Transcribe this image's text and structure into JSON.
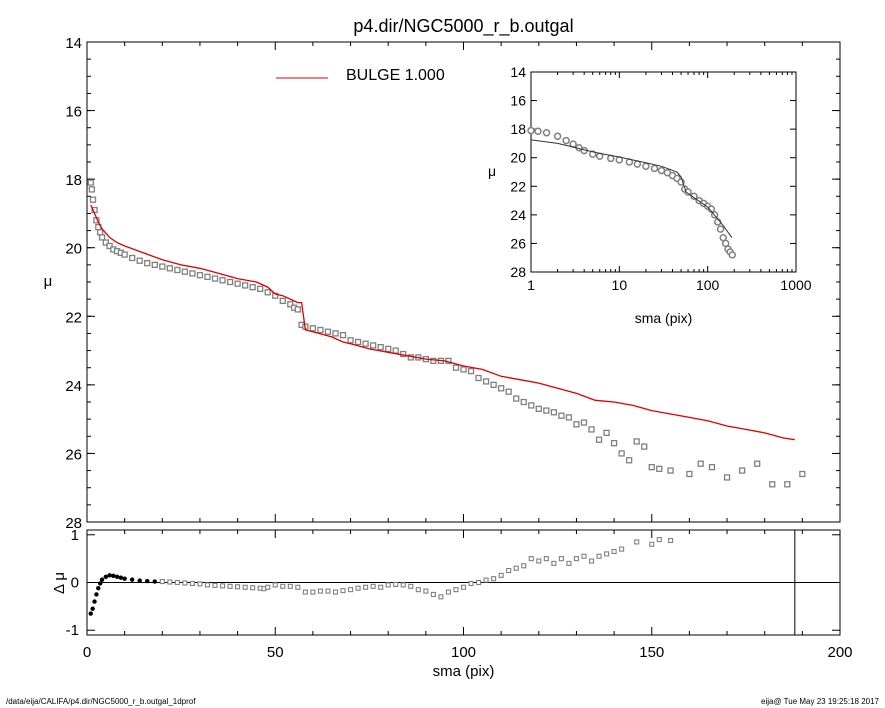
{
  "chart_data": [
    {
      "type": "scatter",
      "title": "p4.dir/NGC5000_r_b.outgal",
      "xlabel": "sma (pix)",
      "ylabel": "μ",
      "xlim": [
        0,
        200
      ],
      "ylim": [
        28,
        14
      ],
      "y_inverted": true,
      "x_ticks": [
        "0",
        "50",
        "100",
        "150",
        "200"
      ],
      "y_ticks": [
        "14",
        "16",
        "18",
        "20",
        "22",
        "24",
        "26",
        "28"
      ],
      "legend": {
        "label": "BULGE 1.000",
        "color": "#dd0000",
        "placement": "top"
      },
      "series": [
        {
          "name": "data",
          "kind": "points",
          "color": "#808080",
          "x": [
            1,
            1.3,
            1.6,
            2,
            2.5,
            3,
            3.5,
            4,
            5,
            6,
            7,
            8,
            9,
            10,
            12,
            14,
            16,
            18,
            20,
            22,
            24,
            26,
            28,
            30,
            32,
            34,
            36,
            38,
            40,
            42,
            44,
            46,
            48,
            50,
            52,
            54,
            55,
            56,
            57,
            58,
            60,
            62,
            64,
            66,
            68,
            70,
            72,
            74,
            76,
            78,
            80,
            82,
            84,
            86,
            88,
            90,
            92,
            94,
            96,
            98,
            100,
            102,
            104,
            106,
            108,
            110,
            112,
            114,
            116,
            118,
            120,
            122,
            124,
            126,
            128,
            130,
            132,
            134,
            136,
            138,
            140,
            142,
            144,
            146,
            148,
            150,
            152,
            155,
            160,
            163,
            166,
            170,
            174,
            178,
            182,
            186,
            190
          ],
          "values": [
            18.1,
            18.3,
            18.6,
            18.9,
            19.2,
            19.4,
            19.55,
            19.7,
            19.85,
            19.95,
            20.05,
            20.1,
            20.15,
            20.2,
            20.3,
            20.38,
            20.45,
            20.5,
            20.55,
            20.6,
            20.65,
            20.7,
            20.75,
            20.8,
            20.85,
            20.9,
            20.95,
            21.0,
            21.05,
            21.1,
            21.15,
            21.2,
            21.3,
            21.4,
            21.55,
            21.65,
            21.75,
            21.8,
            22.25,
            22.3,
            22.35,
            22.4,
            22.45,
            22.5,
            22.55,
            22.7,
            22.75,
            22.8,
            22.85,
            22.9,
            22.95,
            23.0,
            23.1,
            23.2,
            23.2,
            23.25,
            23.3,
            23.3,
            23.3,
            23.5,
            23.55,
            23.6,
            23.8,
            23.9,
            24.0,
            24.1,
            24.2,
            24.4,
            24.5,
            24.6,
            24.7,
            24.75,
            24.8,
            24.9,
            24.95,
            25.15,
            25.1,
            25.3,
            25.6,
            25.4,
            25.7,
            26.0,
            26.2,
            25.65,
            25.8,
            26.4,
            26.45,
            26.5,
            26.6,
            26.3,
            26.4,
            26.7,
            26.5,
            26.3,
            26.9,
            26.9,
            26.6
          ]
        },
        {
          "name": "BULGE 1.000",
          "kind": "line",
          "color": "#dd0000",
          "x": [
            1,
            2,
            3,
            4,
            6,
            8,
            10,
            15,
            20,
            25,
            30,
            35,
            40,
            45,
            48,
            50,
            52,
            54,
            56,
            57,
            58,
            60,
            65,
            68,
            70,
            75,
            80,
            85,
            90,
            95,
            100,
            105,
            110,
            115,
            120,
            125,
            130,
            135,
            140,
            145,
            150,
            155,
            160,
            165,
            170,
            175,
            180,
            185,
            188
          ],
          "values": [
            18.75,
            19.0,
            19.25,
            19.45,
            19.7,
            19.85,
            19.95,
            20.15,
            20.35,
            20.5,
            20.6,
            20.75,
            20.9,
            21.0,
            21.15,
            21.35,
            21.4,
            21.5,
            21.6,
            21.6,
            22.4,
            22.45,
            22.6,
            22.75,
            22.8,
            22.95,
            23.05,
            23.15,
            23.25,
            23.3,
            23.45,
            23.55,
            23.75,
            23.85,
            23.95,
            24.1,
            24.25,
            24.45,
            24.5,
            24.6,
            24.75,
            24.85,
            24.95,
            25.05,
            25.2,
            25.3,
            25.4,
            25.55,
            25.6
          ]
        }
      ]
    },
    {
      "type": "scatter",
      "xlabel": "sma (pix)",
      "ylabel": "μ",
      "x_scale": "log",
      "xlim": [
        1,
        1000
      ],
      "ylim": [
        28,
        14
      ],
      "y_inverted": true,
      "x_ticks": [
        "1",
        "10",
        "100",
        "1000"
      ],
      "y_ticks": [
        "14",
        "16",
        "18",
        "20",
        "22",
        "24",
        "26",
        "28"
      ],
      "series": [
        {
          "name": "data",
          "kind": "points",
          "color": "#808080",
          "x": [
            1,
            1.2,
            1.5,
            2,
            2.5,
            3,
            3.5,
            4,
            5,
            6,
            8,
            10,
            13,
            16,
            20,
            25,
            30,
            35,
            40,
            45,
            50,
            55,
            60,
            70,
            80,
            90,
            100,
            110,
            120,
            130,
            140,
            150,
            160,
            170,
            180,
            190
          ],
          "values": [
            18.1,
            18.15,
            18.25,
            18.5,
            18.8,
            19.05,
            19.3,
            19.5,
            19.75,
            19.9,
            20.05,
            20.15,
            20.3,
            20.45,
            20.6,
            20.75,
            20.9,
            21.05,
            21.25,
            21.45,
            21.7,
            22.2,
            22.4,
            22.7,
            23.0,
            23.2,
            23.4,
            23.6,
            24.0,
            24.5,
            25.0,
            25.6,
            26.0,
            26.4,
            26.6,
            26.8
          ]
        },
        {
          "name": "BULGE 1.000",
          "kind": "line",
          "color": "#333333",
          "x": [
            1,
            2,
            3,
            4,
            6,
            10,
            20,
            30,
            45,
            50,
            57,
            70,
            100,
            150,
            188
          ],
          "values": [
            18.75,
            19.0,
            19.25,
            19.45,
            19.7,
            19.95,
            20.35,
            20.6,
            21.0,
            21.35,
            22.4,
            22.8,
            23.45,
            24.75,
            25.6
          ]
        }
      ]
    },
    {
      "type": "scatter",
      "xlabel": "sma (pix)",
      "ylabel": "Δ μ",
      "xlim": [
        0,
        200
      ],
      "ylim": [
        -1.1,
        1.1
      ],
      "x_ticks": [
        "0",
        "50",
        "100",
        "150",
        "200"
      ],
      "y_ticks": [
        "-1",
        "0",
        "1"
      ],
      "zero_line": true,
      "series": [
        {
          "name": "residual",
          "kind": "points",
          "color": "#808080",
          "x": [
            1,
            1.5,
            2,
            2.5,
            3,
            3.5,
            4,
            5,
            6,
            7,
            8,
            9,
            10,
            12,
            14,
            16,
            18,
            20,
            22,
            24,
            26,
            28,
            30,
            32,
            34,
            36,
            38,
            40,
            42,
            44,
            46,
            47,
            48,
            50,
            52,
            54,
            56,
            58,
            60,
            62,
            64,
            66,
            68,
            70,
            72,
            74,
            76,
            78,
            80,
            82,
            84,
            86,
            88,
            90,
            92,
            94,
            96,
            98,
            100,
            102,
            104,
            106,
            108,
            110,
            112,
            114,
            116,
            118,
            120,
            122,
            124,
            126,
            128,
            130,
            132,
            134,
            136,
            138,
            140,
            142,
            146,
            150,
            152,
            155
          ],
          "values": [
            -0.65,
            -0.55,
            -0.4,
            -0.25,
            -0.12,
            -0.02,
            0.06,
            0.12,
            0.15,
            0.14,
            0.12,
            0.1,
            0.08,
            0.06,
            0.04,
            0.03,
            0.02,
            0.02,
            0.01,
            0.0,
            -0.01,
            -0.02,
            -0.03,
            -0.05,
            -0.06,
            -0.07,
            -0.08,
            -0.09,
            -0.1,
            -0.11,
            -0.12,
            -0.13,
            -0.1,
            -0.05,
            -0.08,
            -0.08,
            -0.1,
            -0.2,
            -0.2,
            -0.18,
            -0.18,
            -0.2,
            -0.17,
            -0.15,
            -0.12,
            -0.1,
            -0.08,
            -0.1,
            -0.05,
            -0.04,
            -0.05,
            -0.08,
            -0.15,
            -0.18,
            -0.25,
            -0.3,
            -0.2,
            -0.15,
            -0.1,
            -0.02,
            0.0,
            0.05,
            0.08,
            0.15,
            0.25,
            0.3,
            0.35,
            0.5,
            0.45,
            0.5,
            0.4,
            0.5,
            0.4,
            0.5,
            0.55,
            0.45,
            0.55,
            0.6,
            0.65,
            0.7,
            0.85,
            0.8,
            0.9,
            0.88
          ]
        }
      ]
    }
  ],
  "footer": {
    "path": "/data/eija/CALIFA/p4.dir/NGC5000_r_b.outgal_1dprof",
    "stamp": "eija@  Tue May 23 19:25:18 2017"
  }
}
